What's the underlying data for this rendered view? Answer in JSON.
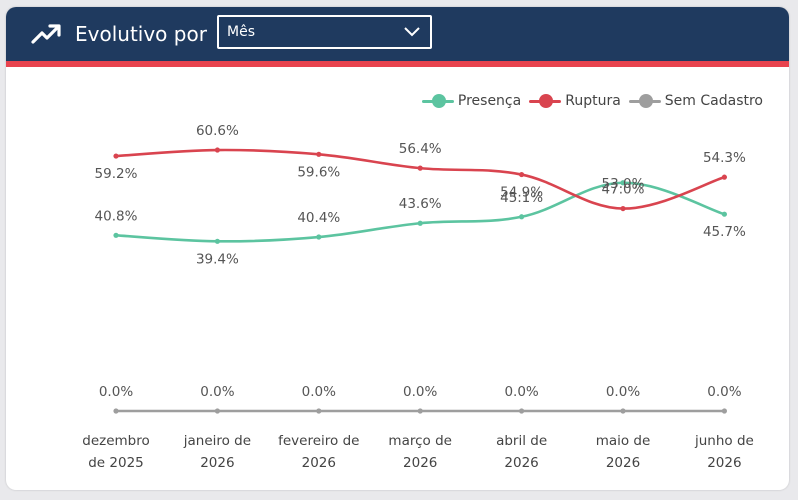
{
  "header": {
    "title": "Evolutivo por",
    "dropdown_value": "Mês",
    "icon": "trending-up-icon",
    "chevron_icon": "chevron-down-icon"
  },
  "colors": {
    "header_bg": "#1f3a5f",
    "accent": "#e8434e",
    "presenca": "#5cc4a0",
    "ruptura": "#d9444f",
    "sem_cadastro": "#9e9e9e"
  },
  "chart_data": {
    "type": "line",
    "categories": [
      [
        "dezembro",
        "de 2025"
      ],
      [
        "janeiro de",
        "2026"
      ],
      [
        "fevereiro de",
        "2026"
      ],
      [
        "março de",
        "2026"
      ],
      [
        "abril de",
        "2026"
      ],
      [
        "maio de",
        "2026"
      ],
      [
        "junho de",
        "2026"
      ]
    ],
    "ylim": [
      0,
      62
    ],
    "grid": false,
    "legend_position": "top-right",
    "series": [
      {
        "name": "Presença",
        "color": "#5cc4a0",
        "values": [
          40.8,
          39.4,
          40.4,
          43.6,
          45.1,
          53.0,
          45.7
        ],
        "labels": [
          "40.8%",
          "39.4%",
          "40.4%",
          "43.6%",
          "45.1%",
          "53.0%",
          "45.7%"
        ]
      },
      {
        "name": "Ruptura",
        "color": "#d9444f",
        "values": [
          59.2,
          60.6,
          59.6,
          56.4,
          54.9,
          47.0,
          54.3
        ],
        "labels": [
          "59.2%",
          "60.6%",
          "59.6%",
          "56.4%",
          "54.9%",
          "47.0%",
          "54.3%"
        ]
      },
      {
        "name": "Sem Cadastro",
        "color": "#9e9e9e",
        "values": [
          0.0,
          0.0,
          0.0,
          0.0,
          0.0,
          0.0,
          0.0
        ],
        "labels": [
          "0.0%",
          "0.0%",
          "0.0%",
          "0.0%",
          "0.0%",
          "0.0%",
          "0.0%"
        ]
      }
    ]
  }
}
